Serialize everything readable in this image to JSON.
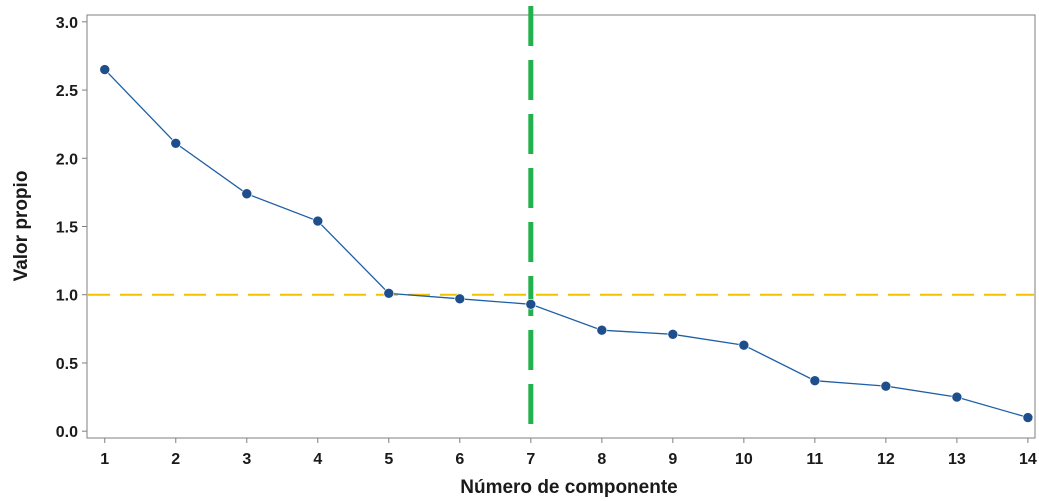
{
  "chart_data": {
    "type": "line",
    "title": "",
    "xlabel": "Número de componente",
    "ylabel": "Valor propio",
    "x": [
      1,
      2,
      3,
      4,
      5,
      6,
      7,
      8,
      9,
      10,
      11,
      12,
      13,
      14
    ],
    "series": [
      {
        "values": [
          2.65,
          2.11,
          1.74,
          1.54,
          1.01,
          0.97,
          0.93,
          0.74,
          0.71,
          0.63,
          0.37,
          0.33,
          0.25,
          0.1
        ]
      }
    ],
    "xticks": [
      "1",
      "2",
      "3",
      "4",
      "5",
      "6",
      "7",
      "8",
      "9",
      "10",
      "11",
      "12",
      "13",
      "14"
    ],
    "yticks": [
      "0.0",
      "0.5",
      "1.0",
      "1.5",
      "2.0",
      "2.5",
      "3.0"
    ],
    "xlim": [
      0.75,
      14.1
    ],
    "ylim": [
      -0.05,
      3.05
    ],
    "reference_lines": [
      {
        "orientation": "horizontal",
        "value": 1.0,
        "style": "dashed",
        "color": "#f2c200"
      },
      {
        "orientation": "vertical",
        "value": 7,
        "style": "dashed",
        "color": "#22b14c"
      }
    ],
    "colors": {
      "series": "#1f5fa6",
      "marker": "#1f4e8c",
      "frame": "#7f7f7f"
    },
    "grid": false,
    "legend": "none"
  }
}
